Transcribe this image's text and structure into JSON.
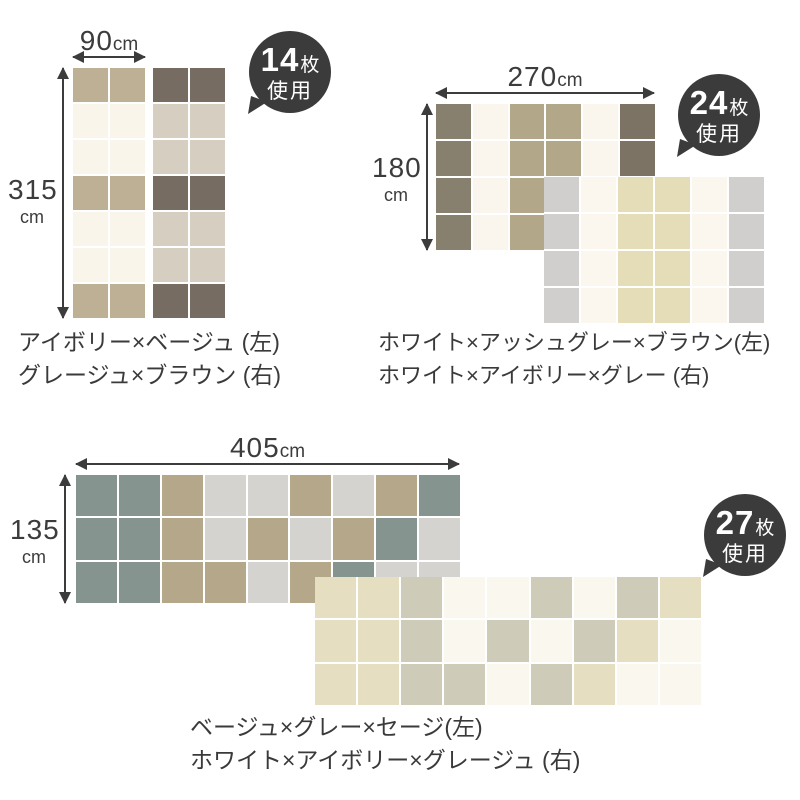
{
  "sections": [
    {
      "badge": {
        "count": "14",
        "count_unit": "枚",
        "usage": "使用"
      },
      "width_dim": {
        "value": "90",
        "unit": "cm"
      },
      "height_dim": {
        "value": "315",
        "unit": "cm"
      },
      "captions": [
        "アイボリー×ベージュ (左)",
        "グレージュ×ブラウン (右)"
      ],
      "rugs": [
        {
          "name": "ivory-beige-left",
          "colors": {
            "B": "#bdb094",
            "I": "#f9f5ea"
          },
          "rows": [
            "BB",
            "II",
            "II",
            "BB",
            "II",
            "II",
            "BB"
          ]
        },
        {
          "name": "greige-brown-right",
          "colors": {
            "R": "#766c62",
            "G": "#d6cfc1"
          },
          "rows": [
            "RR",
            "GG",
            "GG",
            "RR",
            "GG",
            "GG",
            "RR"
          ]
        }
      ]
    },
    {
      "badge": {
        "count": "24",
        "count_unit": "枚",
        "usage": "使用"
      },
      "width_dim": {
        "value": "270",
        "unit": "cm"
      },
      "height_dim": {
        "value": "180",
        "unit": "cm"
      },
      "captions": [
        "ホワイト×アッシュグレー×ブラウン(左)",
        "ホワイト×アイボリー×グレー (右)"
      ],
      "rugs": [
        {
          "name": "white-ashgray-brown-left",
          "colors": {
            "A": "#87806f",
            "W": "#faf6ed",
            "T": "#b3a78a",
            "D": "#7d7365"
          },
          "rows": [
            "AWTTWD",
            "AWTTWD",
            "AWTTWD",
            "AWTTWD"
          ]
        },
        {
          "name": "white-ivory-gray-right",
          "colors": {
            "Y": "#d0cfcd",
            "W": "#fbf7ee",
            "V": "#e5dcb8"
          },
          "rows": [
            "YWVVWY",
            "YWVVWY",
            "YWVVWY",
            "YWVVWY"
          ]
        }
      ]
    },
    {
      "badge": {
        "count": "27",
        "count_unit": "枚",
        "usage": "使用"
      },
      "width_dim": {
        "value": "405",
        "unit": "cm"
      },
      "height_dim": {
        "value": "135",
        "unit": "cm"
      },
      "captions": [
        "ベージュ×グレー×セージ(左)",
        "ホワイト×アイボリー×グレージュ (右)"
      ],
      "rugs": [
        {
          "name": "beige-gray-sage-left",
          "colors": {
            "S": "#85948e",
            "E": "#b4a78a",
            "L": "#d5d3d0"
          },
          "rows": [
            "SSELLELES",
            "SSELELESL",
            "SSEELESLL"
          ]
        },
        {
          "name": "white-ivory-greige-right",
          "colors": {
            "V": "#e6dec0",
            "J": "#cfcbb9",
            "W": "#faf7ee"
          },
          "rows": [
            "VVJWWJWJV",
            "VVJWJWJVW",
            "VVJJWJVWW"
          ]
        }
      ]
    }
  ]
}
